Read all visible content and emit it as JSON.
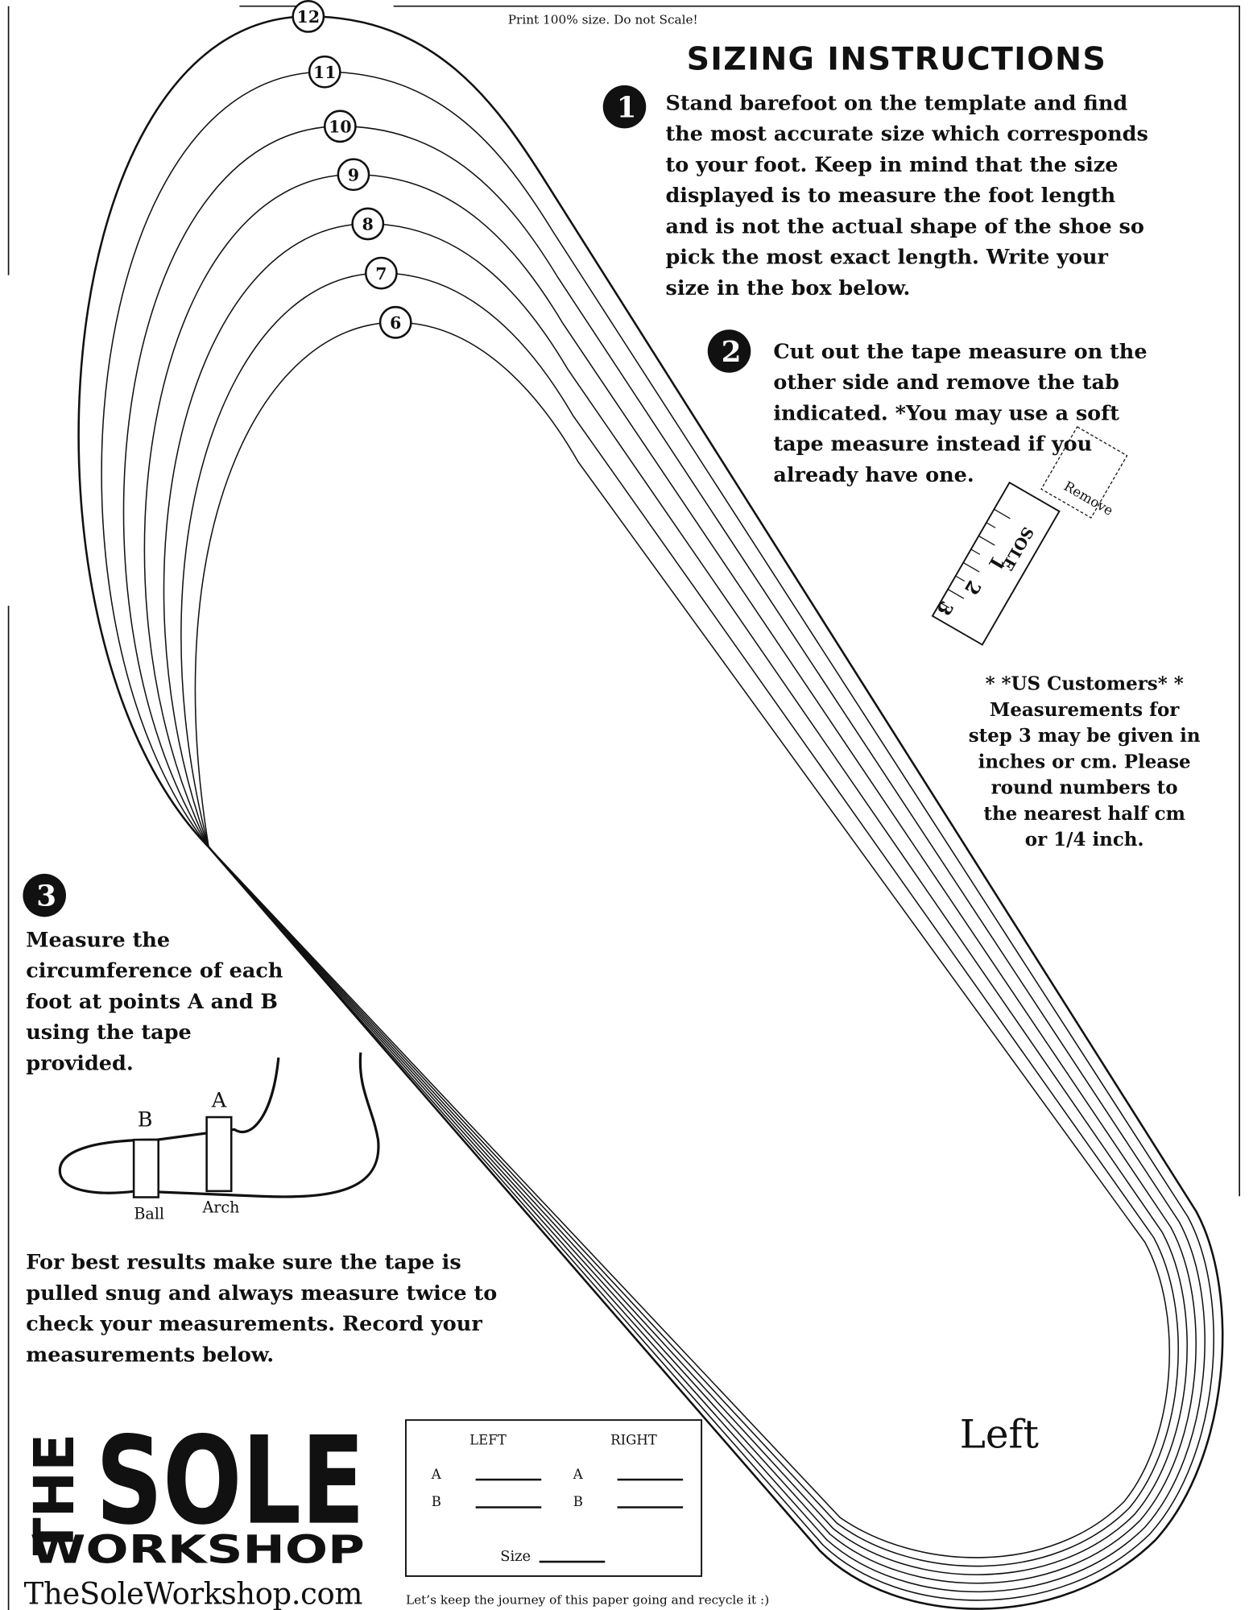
{
  "header": {
    "print_note": "Print 100% size.  Do not Scale!",
    "title": "SIZING INSTRUCTIONS"
  },
  "template": {
    "sizes": [
      "12",
      "11",
      "10",
      "9",
      "8",
      "7",
      "6"
    ],
    "side": "Left"
  },
  "steps": [
    {
      "number": "1",
      "lines": [
        "Stand barefoot on the template and find",
        "the most accurate size which corresponds",
        "to your foot.  Keep in mind that the size",
        "displayed is to measure the foot length",
        "and is not the actual shape of the shoe so",
        "pick the most exact length.  Write your",
        "size in the box below."
      ]
    },
    {
      "number": "2",
      "lines": [
        "Cut out the tape measure on the",
        "other side and remove the tab",
        "indicated.  *You may use a soft",
        "tape measure instead if you",
        "already have one."
      ]
    },
    {
      "number": "3",
      "lines": [
        "Measure the",
        "circumference of each",
        "foot at points A and B",
        "using the tape",
        "provided."
      ]
    }
  ],
  "tape": {
    "remove": "Remove",
    "marks": [
      "1",
      "2",
      "3"
    ],
    "brand": "SOLE"
  },
  "us_note": {
    "lines": [
      "* *US Customers* *",
      "Measurements for",
      "step 3 may be given in",
      "inches or cm.  Please",
      "round numbers to",
      "the nearest half cm",
      "or 1/4 inch."
    ]
  },
  "diagram": {
    "a": "A",
    "b": "B",
    "ball": "Ball",
    "arch": "Arch"
  },
  "best_results": {
    "lines": [
      "For best results make sure the tape is",
      "pulled snug and always measure twice to",
      "check your measurements.  Record your",
      "measurements below."
    ]
  },
  "logo": {
    "the": "THE",
    "sole": "SOLE",
    "workshop": "WORKSHOP",
    "url": "TheSoleWorkshop.com"
  },
  "form": {
    "left": "LEFT",
    "right": "RIGHT",
    "rows": [
      [
        "A",
        "A"
      ],
      [
        "B",
        "B"
      ]
    ],
    "size": "Size"
  },
  "footer": "Let’s keep the journey of this paper going and recycle it :)"
}
